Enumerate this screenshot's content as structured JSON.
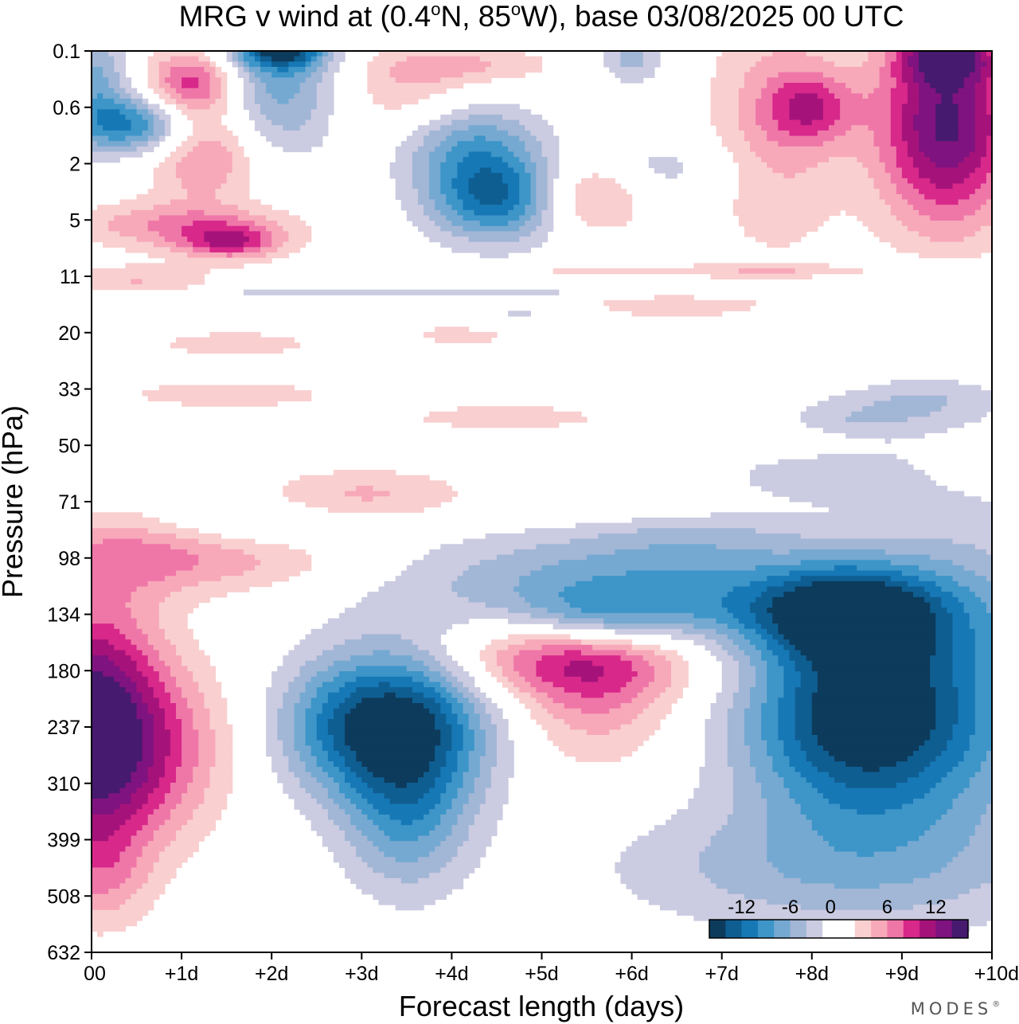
{
  "chart_data": {
    "type": "heatmap",
    "title": "MRG v wind at (0.4°N, 85°W),  base 03/08/2025  00 UTC",
    "title_parts": {
      "prefix": "MRG v wind at (0.4",
      "deg1": "o",
      "mid": "N, 85",
      "deg2": "o",
      "suffix": "W),  base 03/08/2025  00 UTC"
    },
    "xlabel": "Forecast length (days)",
    "ylabel": "Pressure (hPa)",
    "x_ticks": [
      "00",
      "+1d",
      "+2d",
      "+3d",
      "+4d",
      "+5d",
      "+6d",
      "+7d",
      "+8d",
      "+9d",
      "+10d"
    ],
    "y_ticks": [
      "0.1",
      "0.6",
      "2",
      "5",
      "11",
      "20",
      "33",
      "50",
      "71",
      "98",
      "134",
      "180",
      "237",
      "310",
      "399",
      "508",
      "632"
    ],
    "xlim_days": [
      0,
      10
    ],
    "legend": {
      "labels": [
        "-12",
        "-6",
        "0",
        "6",
        "12"
      ],
      "levels": [
        -14,
        -12,
        -10,
        -8,
        -6,
        -4,
        -2,
        0,
        2,
        4,
        6,
        8,
        10,
        12,
        14
      ],
      "colors": [
        "#0d3b5c",
        "#0f5e92",
        "#1778b6",
        "#3d95c8",
        "#75a9d1",
        "#a2b6d6",
        "#cbcbe1",
        "#ffffff",
        "#ffffff",
        "#f9cfd0",
        "#f7a9b9",
        "#ef77a8",
        "#d8288a",
        "#a5137a",
        "#7f137f",
        "#461a6e"
      ]
    },
    "features": [
      {
        "x": 0.0,
        "y": 12.1,
        "sx": 0.55,
        "sy": 1.55,
        "v": 17
      },
      {
        "x": 0.9,
        "y": 12.4,
        "sx": 0.55,
        "sy": 1.1,
        "v": 5
      },
      {
        "x": 0.15,
        "y": 14.7,
        "sx": 0.35,
        "sy": 0.6,
        "v": 3
      },
      {
        "x": 3.45,
        "y": 11.9,
        "sx": 0.7,
        "sy": 1.0,
        "v": -14.8
      },
      {
        "x": 3.5,
        "y": 13.6,
        "sx": 0.5,
        "sy": 1.0,
        "v": -7
      },
      {
        "x": 2.6,
        "y": 12.0,
        "sx": 0.5,
        "sy": 0.8,
        "v": -4
      },
      {
        "x": 5.3,
        "y": 10.7,
        "sx": 1.1,
        "sy": 0.55,
        "v": 9
      },
      {
        "x": 5.6,
        "y": 11.5,
        "sx": 0.65,
        "sy": 0.9,
        "v": 5
      },
      {
        "x": 8.45,
        "y": 11.85,
        "sx": 0.9,
        "sy": 1.25,
        "v": -14.2
      },
      {
        "x": 8.4,
        "y": 10.0,
        "sx": 0.65,
        "sy": 0.55,
        "v": -10
      },
      {
        "x": 9.6,
        "y": 11.2,
        "sx": 1.0,
        "sy": 2.2,
        "v": -6
      },
      {
        "x": 8.0,
        "y": 14.5,
        "sx": 1.6,
        "sy": 0.8,
        "v": -5
      },
      {
        "x": 5.6,
        "y": 9.4,
        "sx": 1.6,
        "sy": 0.65,
        "v": -6
      },
      {
        "x": 5.6,
        "y": 10.1,
        "sx": 0.7,
        "sy": 0.4,
        "v": -7
      },
      {
        "x": 7.6,
        "y": 9.9,
        "sx": 1.5,
        "sy": 0.6,
        "v": -5
      },
      {
        "x": 6.7,
        "y": 8.4,
        "sx": 0.9,
        "sy": 0.45,
        "v": -3.5
      },
      {
        "x": 1.5,
        "y": 9.0,
        "sx": 1.1,
        "sy": 0.45,
        "v": 4.5
      },
      {
        "x": 0.4,
        "y": 8.9,
        "sx": 0.7,
        "sy": 0.55,
        "v": 3.5
      },
      {
        "x": 3.0,
        "y": 7.9,
        "sx": 0.8,
        "sy": 0.35,
        "v": 4.5
      },
      {
        "x": 6.3,
        "y": 8.0,
        "sx": 1.1,
        "sy": 0.35,
        "v": 3.5
      },
      {
        "x": 1.9,
        "y": 8.4,
        "sx": 0.9,
        "sy": 0.3,
        "v": -3
      },
      {
        "x": 8.4,
        "y": 6.7,
        "sx": 0.6,
        "sy": 0.35,
        "v": -4
      },
      {
        "x": 7.9,
        "y": 7.6,
        "sx": 0.7,
        "sy": 0.3,
        "v": -3.5
      },
      {
        "x": 9.3,
        "y": 6.2,
        "sx": 0.6,
        "sy": 0.3,
        "v": -3.5
      },
      {
        "x": 1.5,
        "y": 6.1,
        "sx": 0.9,
        "sy": 0.18,
        "v": 3.5
      },
      {
        "x": 4.6,
        "y": 6.5,
        "sx": 1.0,
        "sy": 0.2,
        "v": 3
      },
      {
        "x": 8.0,
        "y": 6.9,
        "sx": 0.7,
        "sy": 0.2,
        "v": 3
      },
      {
        "x": 0.5,
        "y": 4.1,
        "sx": 0.6,
        "sy": 0.22,
        "v": 4
      },
      {
        "x": 6.3,
        "y": 4.5,
        "sx": 0.8,
        "sy": 0.2,
        "v": 3.5
      },
      {
        "x": 4.2,
        "y": 5.0,
        "sx": 0.6,
        "sy": 0.2,
        "v": 3
      },
      {
        "x": 1.6,
        "y": 5.2,
        "sx": 0.8,
        "sy": 0.2,
        "v": 3
      },
      {
        "x": 9.3,
        "y": 4.0,
        "sx": 0.6,
        "sy": 0.2,
        "v": -3
      },
      {
        "x": 4.8,
        "y": 4.7,
        "sx": 0.6,
        "sy": 0.2,
        "v": -3
      },
      {
        "x": 1.0,
        "y": 3.1,
        "sx": 0.9,
        "sy": 0.3,
        "v": 6
      },
      {
        "x": 1.55,
        "y": 3.4,
        "sx": 0.4,
        "sy": 0.22,
        "v": 8
      },
      {
        "x": 5.5,
        "y": 2.5,
        "sx": 0.45,
        "sy": 0.5,
        "v": 7
      },
      {
        "x": 4.5,
        "y": 2.6,
        "sx": 0.55,
        "sy": 0.55,
        "v": -12
      },
      {
        "x": 4.2,
        "y": 1.6,
        "sx": 0.55,
        "sy": 0.55,
        "v": -7
      },
      {
        "x": 0.45,
        "y": 1.3,
        "sx": 0.55,
        "sy": 0.38,
        "v": -11
      },
      {
        "x": 0.05,
        "y": 0.4,
        "sx": 0.25,
        "sy": 0.55,
        "v": -6
      },
      {
        "x": 2.1,
        "y": 0.6,
        "sx": 0.45,
        "sy": 0.9,
        "v": -7
      },
      {
        "x": 2.1,
        "y": -0.05,
        "sx": 0.35,
        "sy": 0.25,
        "v": -12
      },
      {
        "x": 1.1,
        "y": 0.6,
        "sx": 0.35,
        "sy": 0.45,
        "v": 9
      },
      {
        "x": 1.25,
        "y": 1.8,
        "sx": 0.45,
        "sy": 0.6,
        "v": 7
      },
      {
        "x": 3.55,
        "y": 0.7,
        "sx": 0.55,
        "sy": 0.6,
        "v": 4
      },
      {
        "x": 4.3,
        "y": 0.25,
        "sx": 0.7,
        "sy": 0.25,
        "v": 3.5
      },
      {
        "x": 6.0,
        "y": 0.15,
        "sx": 0.25,
        "sy": 0.3,
        "v": -5
      },
      {
        "x": 7.6,
        "y": 1.3,
        "sx": 0.55,
        "sy": 1.6,
        "v": 5
      },
      {
        "x": 8.0,
        "y": 1.0,
        "sx": 0.35,
        "sy": 0.45,
        "v": 7
      },
      {
        "x": 9.5,
        "y": 1.3,
        "sx": 0.55,
        "sy": 1.3,
        "v": 14.5
      },
      {
        "x": 9.5,
        "y": 0.1,
        "sx": 0.35,
        "sy": 0.3,
        "v": 9
      },
      {
        "x": 6.2,
        "y": 2.1,
        "sx": 0.7,
        "sy": 0.4,
        "v": -3.5
      },
      {
        "x": 3.5,
        "y": 4.3,
        "sx": 3.0,
        "sy": 0.06,
        "v": -3
      },
      {
        "x": 7.0,
        "y": 3.9,
        "sx": 2.5,
        "sy": 0.08,
        "v": 3
      }
    ]
  },
  "brand": {
    "name": "MODES",
    "mark": "®"
  }
}
